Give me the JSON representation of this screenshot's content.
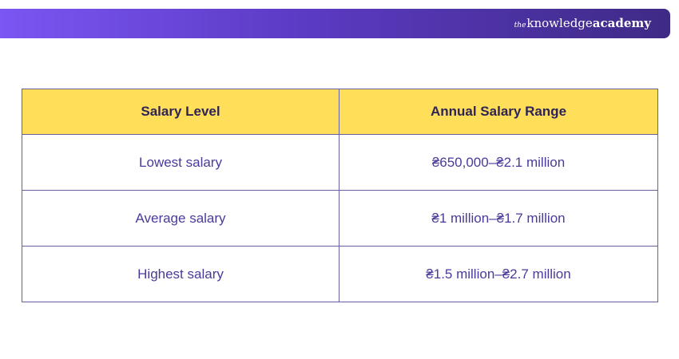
{
  "brand": {
    "prefix": "the",
    "name_regular": "knowledge",
    "name_bold": "academy"
  },
  "table": {
    "headers": [
      "Salary Level",
      "Annual Salary Range"
    ],
    "rows": [
      [
        "Lowest salary",
        "₴650,000–₴2.1 million"
      ],
      [
        "Average salary",
        "₴1 million–₴1.7 million"
      ],
      [
        "Highest salary",
        "₴1.5 million–₴2.7 million"
      ]
    ]
  },
  "colors": {
    "header_bg": "#ffde59",
    "banner_start": "#7b56f2",
    "banner_end": "#3f2a86",
    "cell_text": "#4a3a9a",
    "border": "#6a5e9e"
  }
}
